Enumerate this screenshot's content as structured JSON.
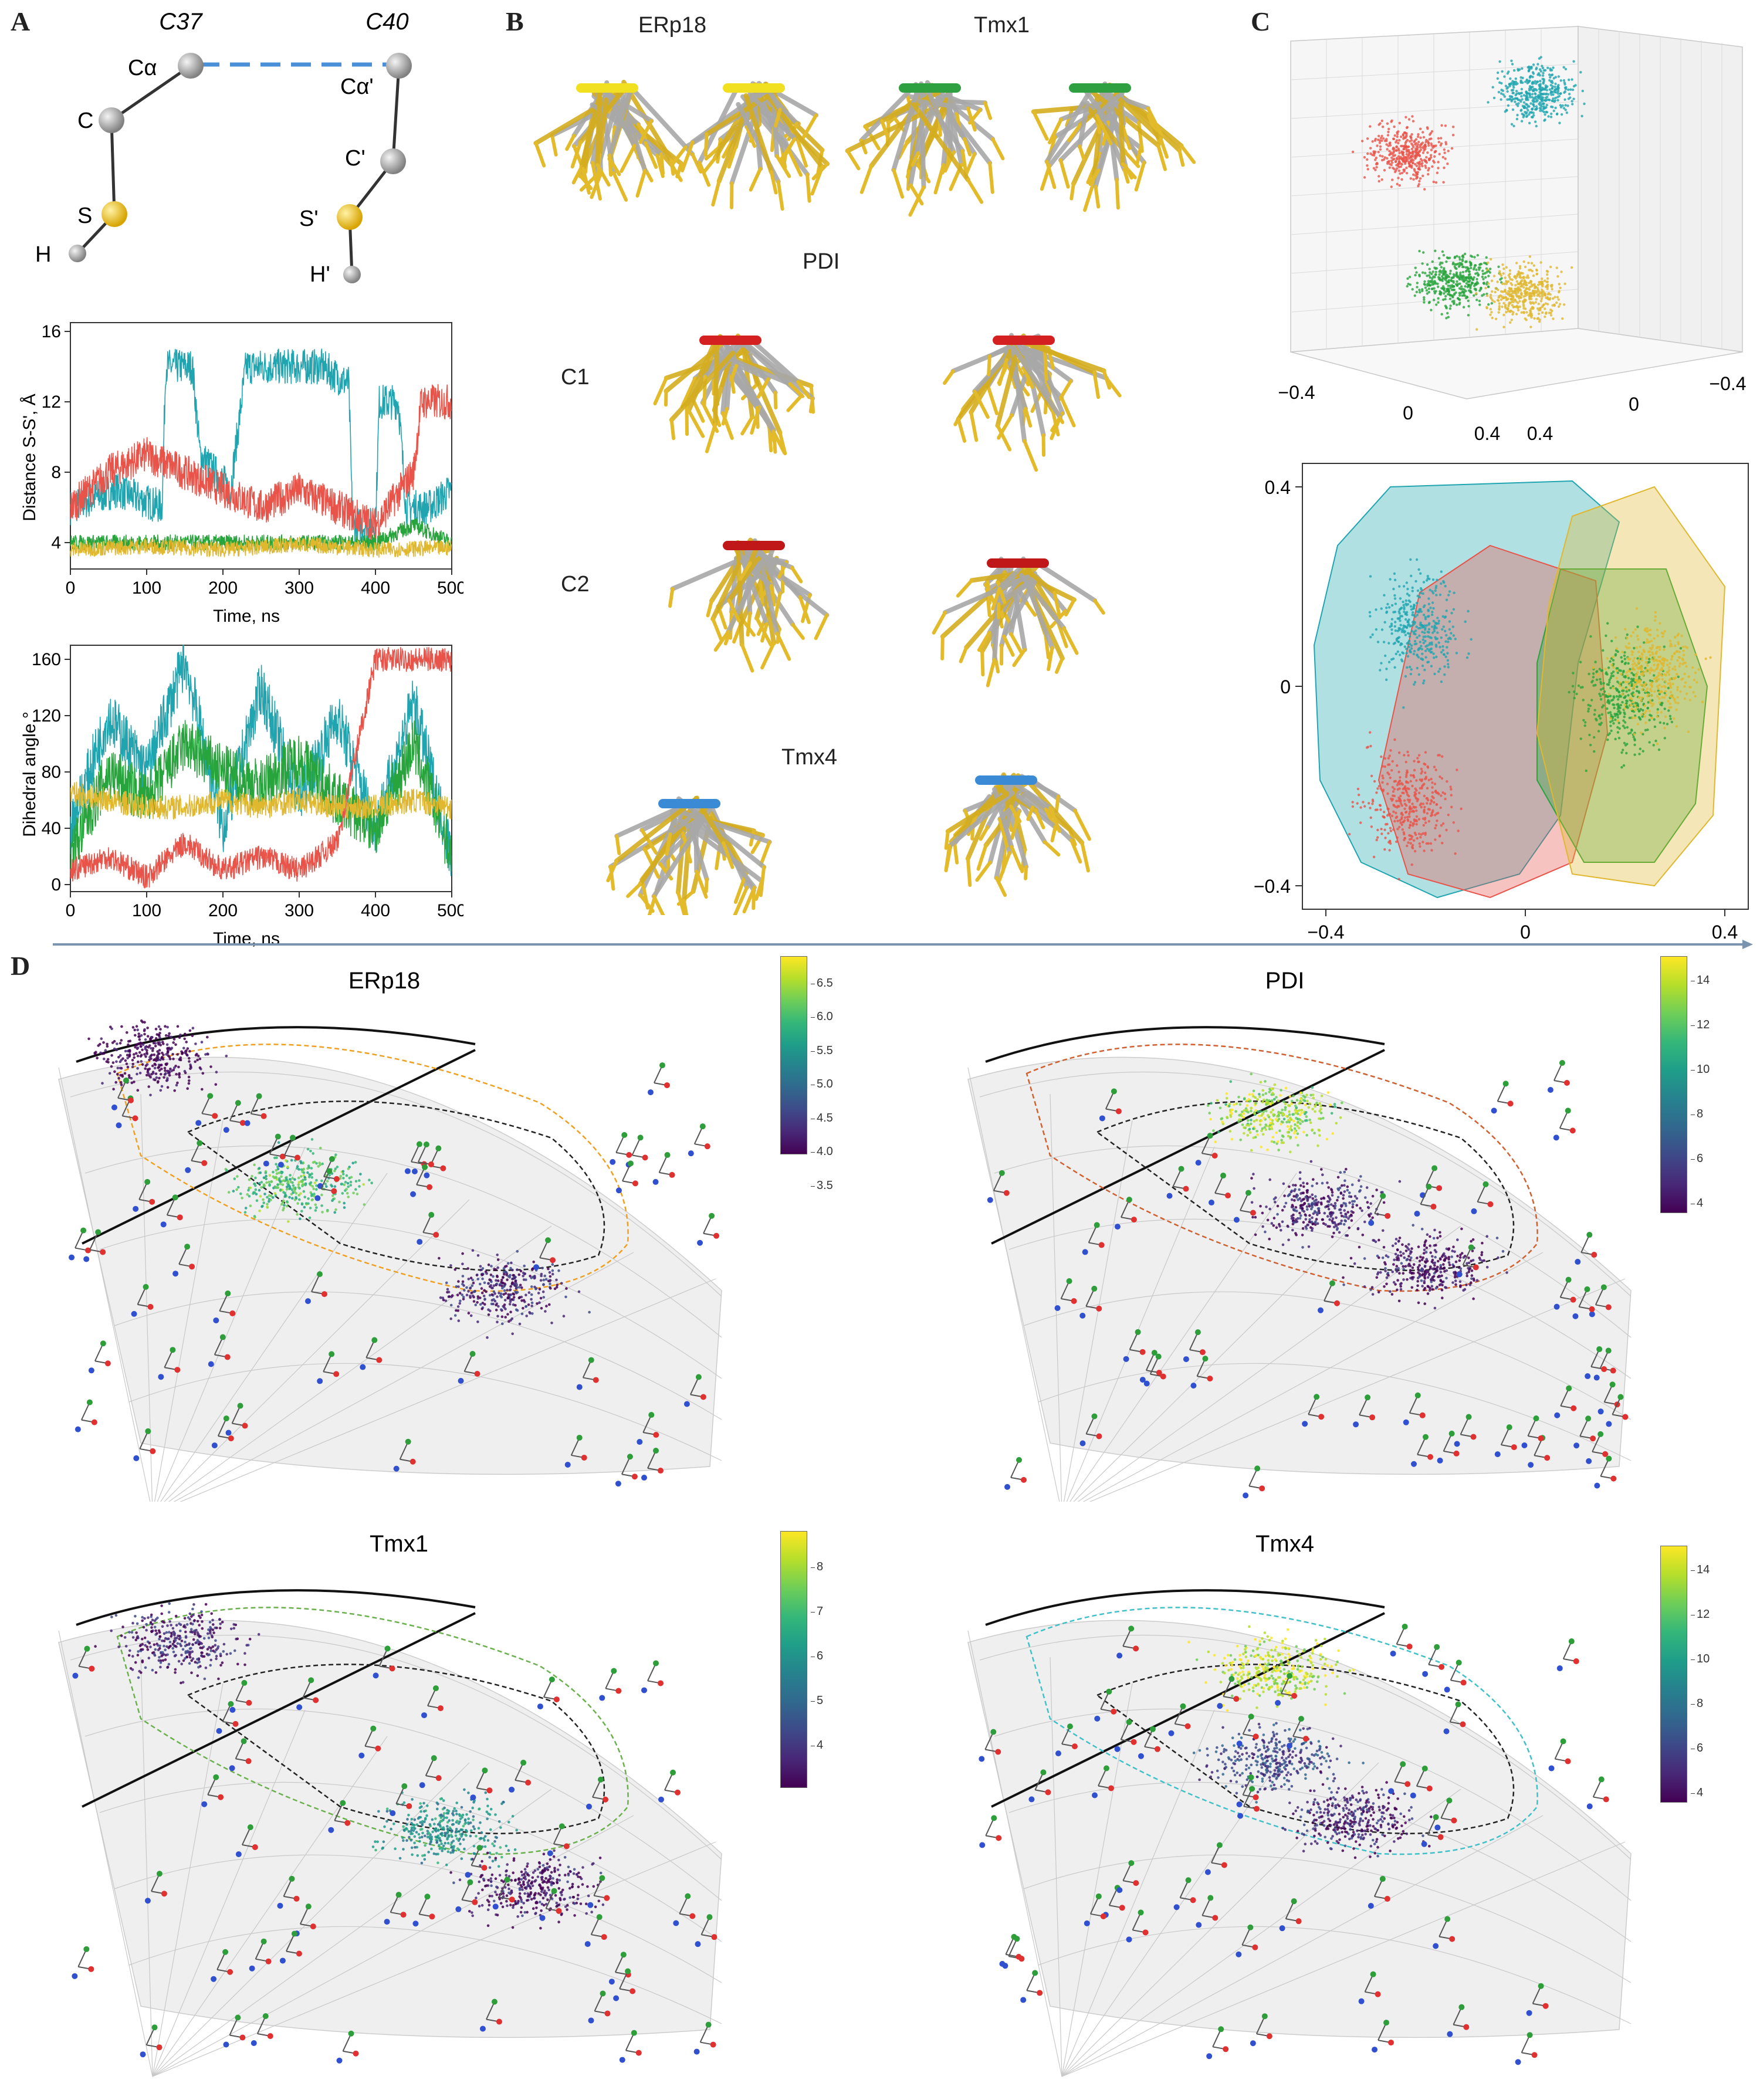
{
  "panel_letters": {
    "a": "A",
    "b": "B",
    "c": "C",
    "d": "D"
  },
  "panel_a": {
    "residue_left": "C37",
    "residue_right": "C40",
    "atoms_left": [
      "Cα",
      "C",
      "S",
      "H"
    ],
    "atoms_right": [
      "Cα'",
      "C'",
      "S'",
      "H'"
    ]
  },
  "panel_b": {
    "labels": {
      "erp18": "ERp18",
      "tmx1": "Tmx1",
      "pdi": "PDI",
      "c1": "C1",
      "c2": "C2",
      "tmx4": "Tmx4"
    }
  },
  "panel_c": {
    "top_ticks_left": [
      "−0.4",
      "0",
      "0.4"
    ],
    "top_ticks_right": [
      "0.4",
      "0",
      "−0.4"
    ],
    "bottom_x_ticks": [
      "−0.4",
      "0",
      "0.4"
    ],
    "bottom_y_ticks": [
      "0.4",
      "0",
      "−0.4"
    ]
  },
  "panel_d": {
    "titles": [
      "ERp18",
      "PDI",
      "Tmx1",
      "Tmx4"
    ],
    "colorbars": [
      {
        "ticks": [
          "6.5",
          "6.0",
          "5.5",
          "5.0",
          "4.5",
          "4.0",
          "3.5"
        ]
      },
      {
        "ticks": [
          "14",
          "12",
          "10",
          "8",
          "6",
          "4"
        ]
      },
      {
        "ticks": [
          "8",
          "7",
          "6",
          "5",
          "4"
        ]
      },
      {
        "ticks": [
          "14",
          "12",
          "10",
          "8",
          "6",
          "4"
        ]
      }
    ]
  },
  "colors": {
    "teal": "#20a5b0",
    "red": "#e8544a",
    "green": "#28a43c",
    "gold": "#e0b830",
    "dashed": "#4a90d9"
  },
  "chart_data": [
    {
      "type": "line",
      "xlabel": "Time, ns",
      "ylabel": "Distance S-S', Å",
      "xlim": [
        0,
        500
      ],
      "ylim": [
        2.5,
        16.5
      ],
      "xticks": [
        "0",
        "100",
        "200",
        "300",
        "400",
        "500"
      ],
      "yticks": [
        "16",
        "12",
        "8",
        "4"
      ],
      "series": [
        {
          "color": "#20a5b0",
          "x": [
            0,
            60,
            120,
            125,
            160,
            170,
            210,
            230,
            280,
            330,
            365,
            370,
            400,
            405,
            430,
            440,
            470,
            500
          ],
          "values": [
            6,
            7,
            6,
            14,
            14,
            9,
            7,
            14,
            14,
            14,
            13,
            5,
            5,
            12,
            12,
            6,
            6,
            7
          ]
        },
        {
          "color": "#e8544a",
          "x": [
            0,
            50,
            100,
            150,
            200,
            250,
            300,
            350,
            400,
            450,
            460,
            500
          ],
          "values": [
            6,
            8,
            9,
            8,
            7,
            6,
            7,
            6,
            5,
            8,
            12,
            12
          ]
        },
        {
          "color": "#28a43c",
          "x": [
            0,
            100,
            200,
            300,
            400,
            450,
            500
          ],
          "values": [
            4,
            4,
            4,
            4,
            4,
            5,
            4
          ]
        },
        {
          "color": "#e0b830",
          "x": [
            0,
            100,
            200,
            300,
            400,
            500
          ],
          "values": [
            3.6,
            3.8,
            3.6,
            3.9,
            3.6,
            3.7
          ]
        }
      ]
    },
    {
      "type": "line",
      "xlabel": "Time, ns",
      "ylabel": "Dihedral angle,°",
      "xlim": [
        0,
        500
      ],
      "ylim": [
        -5,
        170
      ],
      "xticks": [
        "0",
        "100",
        "200",
        "300",
        "400",
        "500"
      ],
      "yticks": [
        "160",
        "120",
        "80",
        "40",
        "0"
      ],
      "series": [
        {
          "color": "#20a5b0",
          "x": [
            0,
            50,
            100,
            150,
            200,
            250,
            300,
            350,
            400,
            450,
            500
          ],
          "values": [
            40,
            120,
            80,
            160,
            40,
            140,
            60,
            120,
            40,
            130,
            20
          ]
        },
        {
          "color": "#28a43c",
          "x": [
            0,
            50,
            100,
            150,
            200,
            250,
            300,
            350,
            400,
            450,
            500
          ],
          "values": [
            20,
            80,
            60,
            100,
            80,
            70,
            90,
            60,
            40,
            100,
            20
          ]
        },
        {
          "color": "#e0b830",
          "x": [
            0,
            50,
            100,
            150,
            200,
            250,
            300,
            350,
            400,
            450,
            500
          ],
          "values": [
            65,
            60,
            55,
            55,
            60,
            55,
            60,
            55,
            55,
            60,
            55
          ]
        },
        {
          "color": "#e8544a",
          "x": [
            0,
            50,
            100,
            150,
            200,
            250,
            300,
            350,
            400,
            450,
            500
          ],
          "values": [
            10,
            20,
            5,
            30,
            10,
            20,
            10,
            30,
            160,
            160,
            160
          ]
        }
      ]
    }
  ]
}
